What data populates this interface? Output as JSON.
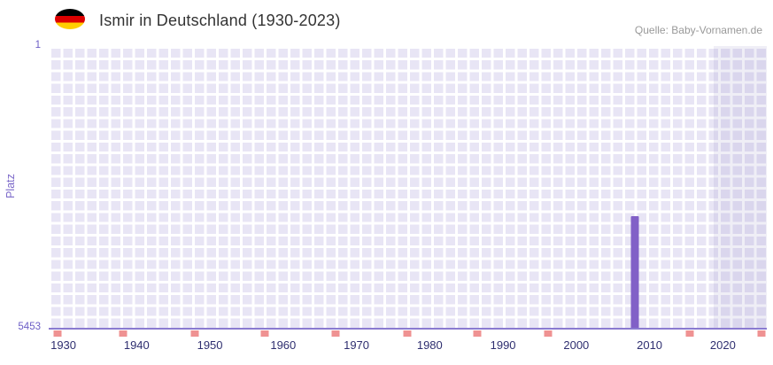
{
  "header": {
    "title": "Ismir in Deutschland (1930-2023)",
    "source": "Quelle: Baby-Vornamen.de",
    "flag_icon": "germany-flag-icon",
    "flag_colors": [
      "#000000",
      "#dd0000",
      "#ffce00"
    ]
  },
  "chart_data": {
    "type": "bar",
    "title": "Ismir in Deutschland (1930-2023)",
    "xlabel": "",
    "ylabel": "Platz",
    "y_axis": {
      "min": 1,
      "max": 5453,
      "inverted": true,
      "tick_labels": [
        "1",
        "5453"
      ]
    },
    "x_axis": {
      "range": [
        1928,
        2026
      ],
      "ticks": [
        "1930",
        "1940",
        "1950",
        "1960",
        "1970",
        "1980",
        "1990",
        "2000",
        "2010",
        "2020"
      ]
    },
    "series": [
      {
        "name": "Platz",
        "points": [
          {
            "year": 2008,
            "rank": 3300
          }
        ]
      }
    ],
    "bottom_markers_pct": [
      1.2,
      10.4,
      20.3,
      30.1,
      40.0,
      49.9,
      59.7,
      69.6,
      89.3,
      99.2
    ],
    "plot_band_pct": [
      92.6,
      100
    ],
    "layout": {
      "grid": true,
      "legend": false
    },
    "colors": {
      "bar": "#8160c7",
      "bottom_marker": "#ef9292",
      "plot_background": "#e8e5f5",
      "grid_line": "#ffffff",
      "axis_line": "#8a7ad0",
      "x_tick_label": "#2f2f70",
      "y_tick_label": "#6c5ec6",
      "band": "rgba(101,88,165,0.10)"
    }
  }
}
